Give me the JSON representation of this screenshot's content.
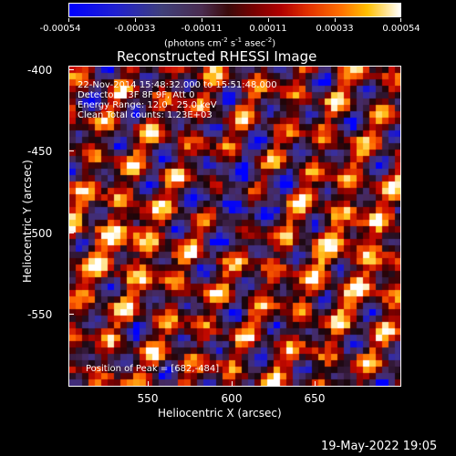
{
  "colorbar": {
    "tick_labels": [
      "-0.00054",
      "-0.00033",
      "-0.00011",
      "0.00011",
      "0.00033",
      "0.00054"
    ],
    "units_prefix": "(photons cm",
    "units_exp1": "-2",
    "units_mid": " s",
    "units_exp2": "-1",
    "units_mid2": " asec",
    "units_exp3": "-2",
    "units_suffix": ")"
  },
  "plot": {
    "title": "Reconstructed RHESSI Image",
    "info_lines": [
      "22-Nov-2014 15:48:32.000 to 15:51:48.000",
      "Detectors: 3F 8F 9F, Att 0",
      "Energy Range: 12.0 - 25.0 keV",
      "Clean    Total counts: 1.23E+03"
    ],
    "peak_text": "Position of Peak = [682,-484]"
  },
  "chart_data": {
    "type": "heatmap",
    "title": "Reconstructed RHESSI Image",
    "xlabel": "Heliocentric X (arcsec)",
    "ylabel": "Heliocentric Y (arcsec)",
    "x_ticks": [
      "550",
      "600",
      "650"
    ],
    "y_ticks": [
      "-400",
      "-450",
      "-500",
      "-550"
    ],
    "xlim": [
      505,
      692
    ],
    "ylim": [
      -595,
      -397
    ],
    "color_range": [
      -0.00054,
      0.00054
    ],
    "peak_position": [
      682,
      -484
    ]
  },
  "footer": {
    "timestamp": "19-May-2022 19:05"
  }
}
